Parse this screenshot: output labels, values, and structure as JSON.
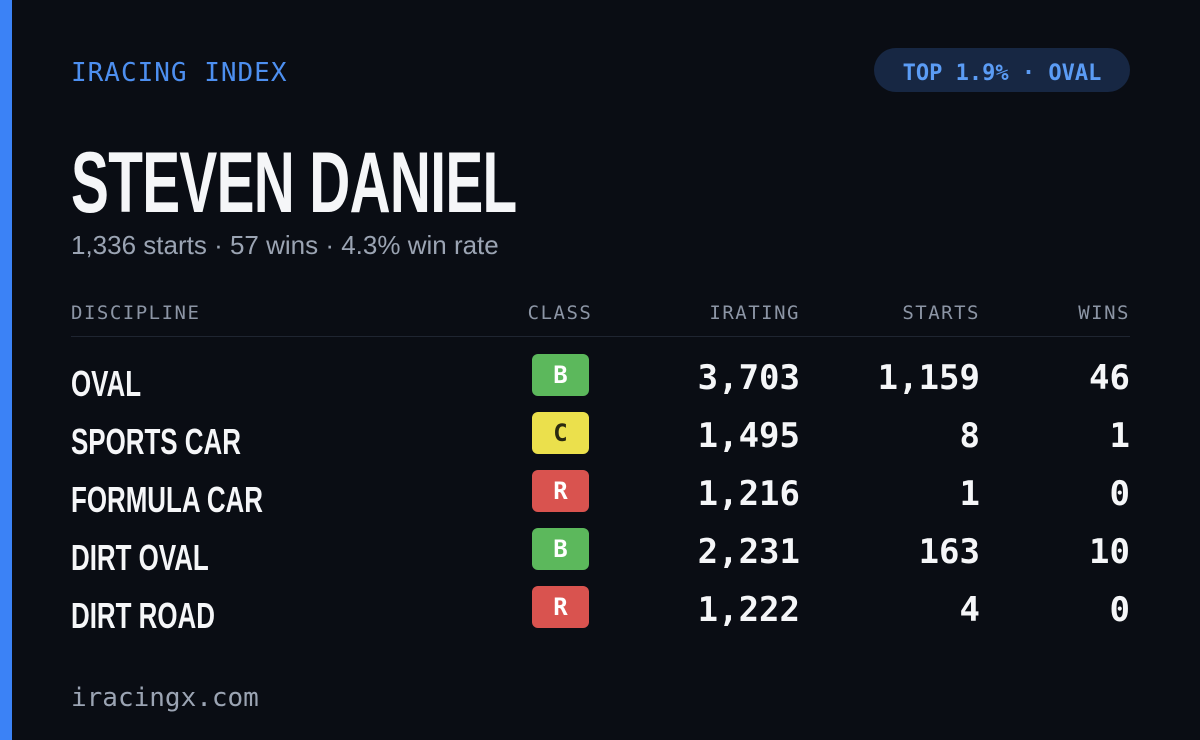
{
  "header": {
    "title": "IRACING INDEX",
    "badge": "TOP 1.9% · OVAL"
  },
  "profile": {
    "name": "STEVEN DANIEL",
    "summary": "1,336 starts · 57 wins · 4.3% win rate"
  },
  "table": {
    "columns": [
      "DISCIPLINE",
      "CLASS",
      "IRATING",
      "STARTS",
      "WINS"
    ],
    "rows": [
      [
        "OVAL",
        "B",
        "3,703",
        "1,159",
        "46"
      ],
      [
        "SPORTS CAR",
        "C",
        "1,495",
        "8",
        "1"
      ],
      [
        "FORMULA CAR",
        "R",
        "1,216",
        "1",
        "0"
      ],
      [
        "DIRT OVAL",
        "B",
        "2,231",
        "163",
        "10"
      ],
      [
        "DIRT ROAD",
        "R",
        "1,222",
        "4",
        "0"
      ]
    ],
    "class_colors": {
      "B": "#5cb85c",
      "C": "#ebe04c",
      "R": "#d9534f"
    }
  },
  "footer": {
    "site": "iracingx.com"
  }
}
